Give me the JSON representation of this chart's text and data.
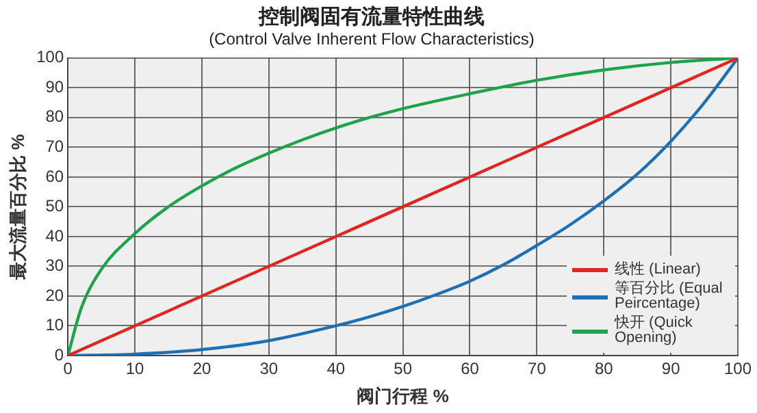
{
  "chart_data": {
    "type": "line",
    "title": "控制阀固有流量特性曲线",
    "subtitle": "(Control Valve Inherent Flow Characteristics)",
    "xlabel": "阀门行程 %",
    "ylabel": "最大流量百分比 %",
    "xlim": [
      0,
      100
    ],
    "xticks": [
      0,
      10,
      20,
      30,
      40,
      50,
      60,
      70,
      80,
      90,
      100
    ],
    "ylim": [
      0,
      100
    ],
    "yticks": [
      0,
      10,
      20,
      30,
      40,
      50,
      60,
      70,
      80,
      90,
      100
    ],
    "grid": true,
    "legend": "bottom right",
    "marker": "none",
    "line_style": "solid",
    "series": [
      {
        "name": "线性 (Linear)",
        "color": "#e0261f",
        "x": [
          0,
          100
        ],
        "values": [
          0,
          100
        ]
      },
      {
        "name": "等百分比 (Equal Peircentage)",
        "color": "#1f6fb5",
        "x": [
          0,
          10,
          20,
          30,
          40,
          45,
          50,
          55,
          60,
          65,
          70,
          75,
          80,
          85,
          90,
          95,
          100
        ],
        "values": [
          0,
          0.5,
          2,
          5,
          10,
          13,
          16.5,
          20.5,
          25,
          30.5,
          37,
          44,
          52,
          61,
          72,
          85,
          100
        ]
      },
      {
        "name": "快开 (Quick Opening)",
        "color": "#1fa34a",
        "x": [
          0,
          2,
          5,
          10,
          15,
          20,
          25,
          30,
          35,
          40,
          45,
          50,
          60,
          70,
          80,
          90,
          100
        ],
        "values": [
          0,
          16,
          29,
          41,
          50,
          57,
          63,
          68,
          72.5,
          76.5,
          80,
          83,
          88,
          92.5,
          96,
          98.5,
          100
        ]
      }
    ]
  }
}
